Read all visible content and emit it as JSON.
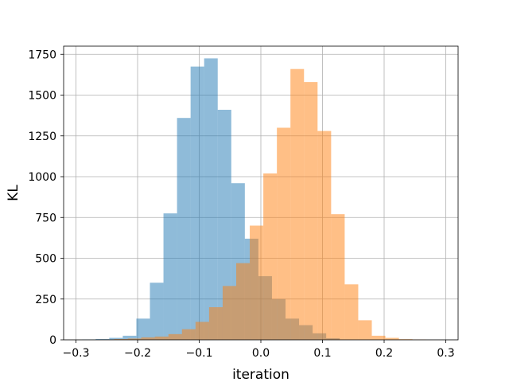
{
  "chart_data": {
    "type": "bar",
    "title": "",
    "xlabel": "iteration",
    "ylabel": "KL",
    "xlim": [
      -0.32,
      0.32
    ],
    "ylim": [
      0,
      1800
    ],
    "x_ticks": [
      -0.3,
      -0.2,
      -0.1,
      0.0,
      0.1,
      0.2,
      0.3
    ],
    "x_tick_labels": [
      "−0.3",
      "−0.2",
      "−0.1",
      "0.0",
      "0.1",
      "0.2",
      "0.3"
    ],
    "y_ticks": [
      0,
      250,
      500,
      750,
      1000,
      1250,
      1500,
      1750
    ],
    "y_tick_labels": [
      "0",
      "250",
      "500",
      "750",
      "1000",
      "1250",
      "1500",
      "1750"
    ],
    "grid": true,
    "legend": "none",
    "series": [
      {
        "color": "#1f77b4",
        "opacity": 0.5,
        "bin_edges": [
          -0.29,
          -0.268,
          -0.246,
          -0.224,
          -0.202,
          -0.18,
          -0.158,
          -0.136,
          -0.114,
          -0.092,
          -0.07,
          -0.048,
          -0.026,
          -0.004,
          0.018,
          0.04,
          0.062,
          0.084,
          0.106,
          0.128
        ],
        "values": [
          2,
          5,
          12,
          25,
          130,
          350,
          775,
          1360,
          1675,
          1725,
          1410,
          960,
          620,
          390,
          250,
          130,
          90,
          40,
          10
        ]
      },
      {
        "color": "#ff7f0e",
        "opacity": 0.5,
        "bin_edges": [
          -0.26,
          -0.238,
          -0.216,
          -0.194,
          -0.172,
          -0.15,
          -0.128,
          -0.106,
          -0.084,
          -0.062,
          -0.04,
          -0.018,
          0.004,
          0.026,
          0.048,
          0.07,
          0.092,
          0.114,
          0.136,
          0.158,
          0.18,
          0.202,
          0.224,
          0.246,
          0.268
        ],
        "values": [
          2,
          5,
          8,
          15,
          20,
          35,
          65,
          110,
          200,
          330,
          470,
          700,
          1020,
          1300,
          1660,
          1580,
          1280,
          770,
          340,
          120,
          25,
          12,
          4,
          2
        ]
      }
    ]
  }
}
